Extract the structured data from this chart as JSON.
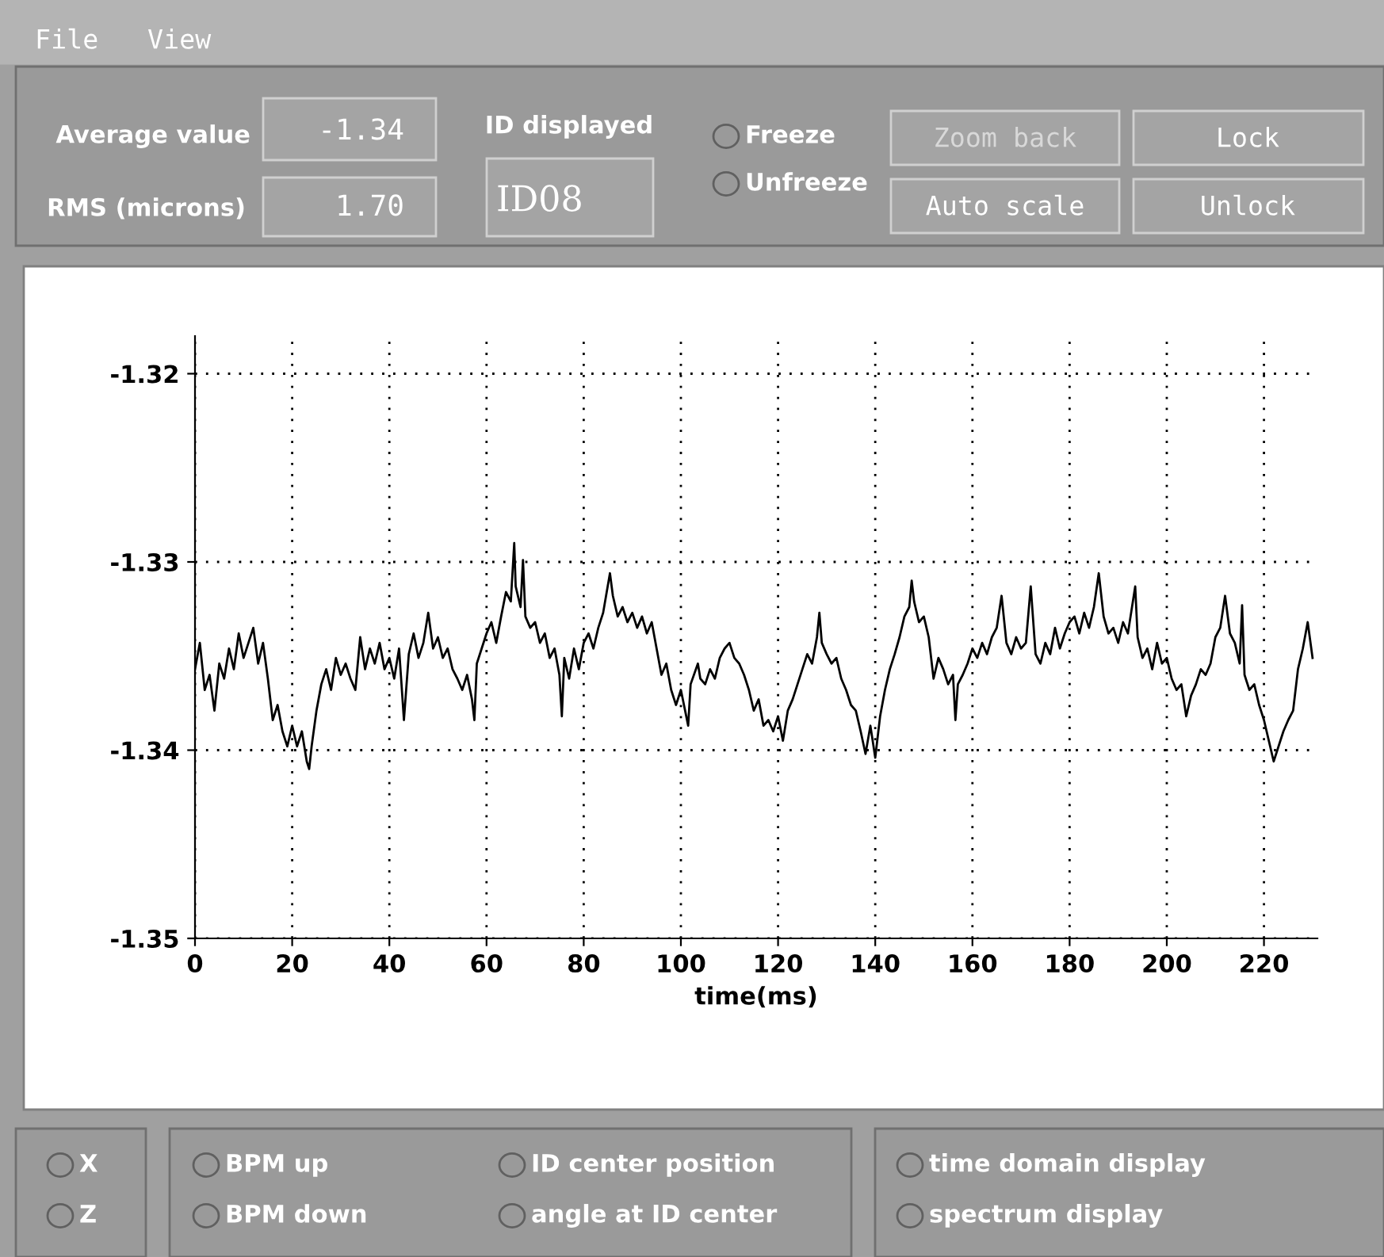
{
  "chart_data": {
    "type": "line",
    "xlabel": "time(ms)",
    "x": [
      0,
      1,
      2,
      3,
      4,
      5,
      6,
      7,
      8,
      9,
      10,
      11,
      12,
      13,
      14,
      15,
      16,
      17,
      18,
      19,
      20,
      21,
      22,
      23,
      23.5,
      24,
      25,
      26,
      27,
      28,
      29,
      30,
      31,
      32,
      33,
      34,
      35,
      36,
      37,
      38,
      39,
      40,
      41,
      42,
      43,
      44,
      45,
      46,
      47,
      48,
      49,
      50,
      51,
      52,
      53,
      54,
      55,
      56,
      57,
      57.5,
      58,
      59,
      60,
      61,
      62,
      63,
      64,
      65,
      65.7,
      66,
      67,
      67.5,
      68,
      69,
      70,
      71,
      72,
      73,
      74,
      75,
      75.5,
      76,
      77,
      78,
      79,
      80,
      81,
      82,
      83,
      84,
      85.4,
      86,
      87,
      88,
      89,
      90,
      91,
      92,
      93,
      94,
      95,
      96,
      97,
      98,
      99,
      100,
      101.5,
      102,
      103.5,
      104,
      105,
      106,
      107,
      108,
      109,
      110,
      111,
      112,
      113,
      114,
      115,
      116,
      117,
      118,
      119,
      120,
      121,
      122,
      123,
      124,
      125,
      126,
      127,
      128,
      128.5,
      129,
      130,
      131,
      132,
      133,
      134,
      135,
      136,
      137,
      138,
      139,
      140,
      141,
      142,
      143,
      144,
      145,
      146,
      147,
      147.5,
      148,
      149,
      150,
      151,
      152,
      153,
      154,
      155,
      156,
      156.5,
      157,
      158,
      159,
      160,
      161,
      162,
      163,
      164,
      165,
      166,
      167,
      168,
      169,
      170,
      171,
      172,
      173,
      174,
      175,
      176,
      177,
      178,
      179,
      180,
      181,
      182,
      183,
      184,
      185,
      186,
      187,
      188,
      189,
      190,
      191,
      192,
      193.5,
      194,
      195,
      196,
      197,
      198,
      199,
      200,
      201,
      202,
      203,
      204,
      205,
      206,
      207,
      208,
      209,
      210,
      211,
      212,
      213,
      214,
      215,
      215.5,
      216,
      217,
      218,
      219,
      220,
      221,
      222,
      223,
      224,
      225,
      226,
      227,
      228,
      229,
      230
    ],
    "series": [
      {
        "color": "#000000",
        "values": [
          -1.3357,
          -1.3343,
          -1.3368,
          -1.336,
          -1.3379,
          -1.3354,
          -1.3362,
          -1.3346,
          -1.3357,
          -1.3338,
          -1.3351,
          -1.3343,
          -1.3335,
          -1.3354,
          -1.3343,
          -1.3362,
          -1.3384,
          -1.3376,
          -1.339,
          -1.3398,
          -1.3387,
          -1.3398,
          -1.339,
          -1.3406,
          -1.341,
          -1.3398,
          -1.3379,
          -1.3365,
          -1.3357,
          -1.3368,
          -1.3351,
          -1.336,
          -1.3354,
          -1.3362,
          -1.3368,
          -1.334,
          -1.3357,
          -1.3346,
          -1.3354,
          -1.3343,
          -1.3357,
          -1.3351,
          -1.3362,
          -1.3346,
          -1.3384,
          -1.3349,
          -1.3338,
          -1.3351,
          -1.3343,
          -1.3327,
          -1.3346,
          -1.334,
          -1.3351,
          -1.3346,
          -1.3357,
          -1.3362,
          -1.3368,
          -1.336,
          -1.3373,
          -1.3384,
          -1.3354,
          -1.3346,
          -1.3338,
          -1.3332,
          -1.3343,
          -1.3329,
          -1.3316,
          -1.3321,
          -1.329,
          -1.3313,
          -1.3324,
          -1.3299,
          -1.3329,
          -1.3335,
          -1.3332,
          -1.3343,
          -1.3338,
          -1.3351,
          -1.3346,
          -1.336,
          -1.3382,
          -1.3351,
          -1.3362,
          -1.3346,
          -1.3357,
          -1.3343,
          -1.3338,
          -1.3346,
          -1.3335,
          -1.3327,
          -1.3306,
          -1.3318,
          -1.3329,
          -1.3324,
          -1.3332,
          -1.3327,
          -1.3335,
          -1.3329,
          -1.3338,
          -1.3332,
          -1.3346,
          -1.336,
          -1.3354,
          -1.3368,
          -1.3376,
          -1.3368,
          -1.3387,
          -1.3365,
          -1.3354,
          -1.3362,
          -1.3365,
          -1.3357,
          -1.3362,
          -1.3351,
          -1.3346,
          -1.3343,
          -1.3351,
          -1.3354,
          -1.336,
          -1.3368,
          -1.3379,
          -1.3373,
          -1.3387,
          -1.3384,
          -1.339,
          -1.3382,
          -1.3395,
          -1.3379,
          -1.3373,
          -1.3365,
          -1.3357,
          -1.3349,
          -1.3354,
          -1.334,
          -1.3327,
          -1.3343,
          -1.3349,
          -1.3354,
          -1.3351,
          -1.3362,
          -1.3368,
          -1.3376,
          -1.3379,
          -1.339,
          -1.3402,
          -1.3387,
          -1.3404,
          -1.3382,
          -1.3368,
          -1.3357,
          -1.3349,
          -1.334,
          -1.3329,
          -1.3324,
          -1.331,
          -1.3321,
          -1.3332,
          -1.3329,
          -1.334,
          -1.3362,
          -1.3351,
          -1.3357,
          -1.3365,
          -1.336,
          -1.3384,
          -1.3365,
          -1.336,
          -1.3354,
          -1.3346,
          -1.3351,
          -1.3343,
          -1.3349,
          -1.334,
          -1.3335,
          -1.3318,
          -1.3343,
          -1.3349,
          -1.334,
          -1.3346,
          -1.3343,
          -1.3313,
          -1.3349,
          -1.3354,
          -1.3343,
          -1.3349,
          -1.3335,
          -1.3346,
          -1.3338,
          -1.3332,
          -1.3329,
          -1.3338,
          -1.3327,
          -1.3335,
          -1.3324,
          -1.3306,
          -1.3329,
          -1.3338,
          -1.3335,
          -1.3343,
          -1.3332,
          -1.3338,
          -1.3313,
          -1.334,
          -1.3351,
          -1.3346,
          -1.3357,
          -1.3343,
          -1.3354,
          -1.3351,
          -1.3362,
          -1.3368,
          -1.3365,
          -1.3382,
          -1.3371,
          -1.3365,
          -1.3357,
          -1.336,
          -1.3354,
          -1.334,
          -1.3335,
          -1.3318,
          -1.3338,
          -1.3343,
          -1.3354,
          -1.3323,
          -1.336,
          -1.3368,
          -1.3365,
          -1.3376,
          -1.3384,
          -1.3395,
          -1.3406,
          -1.3398,
          -1.339,
          -1.3384,
          -1.3379,
          -1.3357,
          -1.3346,
          -1.3332,
          -1.3351
        ]
      }
    ],
    "xlim": [
      0,
      231
    ],
    "xticks": [
      0,
      20,
      40,
      60,
      80,
      100,
      120,
      140,
      160,
      180,
      200,
      220
    ],
    "ylim": [
      -1.35,
      -1.318
    ],
    "yticks": [
      -1.35,
      -1.34,
      -1.33,
      -1.32
    ],
    "grid": true,
    "line_style": "solid",
    "marker": "none",
    "annotations": [
      "File",
      "View",
      "Average value",
      "-1.34",
      "RMS (microns)",
      "1.70",
      "ID displayed",
      "ID08",
      "Freeze",
      "Unfreeze",
      "Zoom back",
      "Lock",
      "Auto scale",
      "Unlock",
      "X",
      "Z",
      "BPM up",
      "BPM down",
      "ID center position",
      "angle at ID center",
      "time domain display",
      "spectrum display"
    ]
  }
}
